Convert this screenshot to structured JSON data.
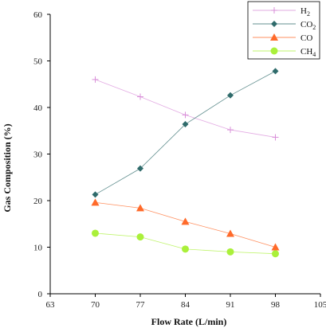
{
  "chart_data": {
    "type": "line",
    "xlabel": "Flow Rate (L/min)",
    "ylabel": "Gas Composition (%)",
    "xlim": [
      63,
      105
    ],
    "ylim": [
      0,
      60
    ],
    "xticks": [
      63,
      70,
      77,
      84,
      91,
      98,
      105
    ],
    "yticks": [
      0,
      10,
      20,
      30,
      40,
      50,
      60
    ],
    "x": [
      70,
      77,
      84,
      91,
      98
    ],
    "grid": false,
    "legend_position": "top-right",
    "series": [
      {
        "name_base": "H",
        "name_sub": "2",
        "marker": "plus",
        "color": "#d98fd9",
        "values": [
          46.0,
          42.3,
          38.4,
          35.2,
          33.6
        ]
      },
      {
        "name_base": "CO",
        "name_sub": "2",
        "marker": "diamond",
        "color": "#2f6b6b",
        "values": [
          21.3,
          26.9,
          36.4,
          42.6,
          47.8
        ]
      },
      {
        "name_base": "CO",
        "name_sub": "",
        "marker": "triangle",
        "color": "#ff6a2a",
        "values": [
          19.6,
          18.4,
          15.5,
          12.9,
          10.0
        ]
      },
      {
        "name_base": "CH",
        "name_sub": "4",
        "marker": "circle",
        "color": "#aaf03a",
        "values": [
          13.0,
          12.2,
          9.6,
          9.0,
          8.6
        ]
      }
    ]
  }
}
